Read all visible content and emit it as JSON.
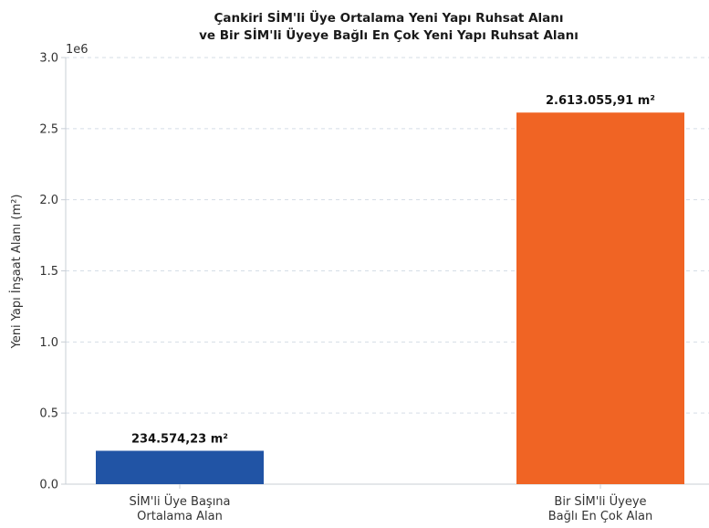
{
  "chart_data": {
    "type": "bar",
    "title_lines": [
      "Çankiri SİM'li Üye Ortalama Yeni Yapı Ruhsat Alanı",
      "ve Bir SİM'li Üyeye Bağlı En Çok Yeni Yapı Ruhsat Alanı"
    ],
    "categories": [
      [
        "SİM'li Üye Başına",
        "Ortalama Alan"
      ],
      [
        "Bir SİM'li Üyeye",
        "Bağlı En Çok Alan"
      ]
    ],
    "values": [
      234574.23,
      2613055.91
    ],
    "data_labels": [
      "234.574,23 m²",
      "2.613.055,91 m²"
    ],
    "colors": [
      "#2154a5",
      "#f06424"
    ],
    "ylabel": "Yeni Yapı İnşaat Alanı (m²)",
    "y_offset_label": "1e6",
    "ylim": [
      0,
      3000000
    ],
    "yticks": [
      0,
      500000,
      1000000,
      1500000,
      2000000,
      2500000,
      3000000
    ],
    "ytick_labels": [
      "0.0",
      "0.5",
      "1.0",
      "1.5",
      "2.0",
      "2.5",
      "3.0"
    ],
    "grid": true
  }
}
